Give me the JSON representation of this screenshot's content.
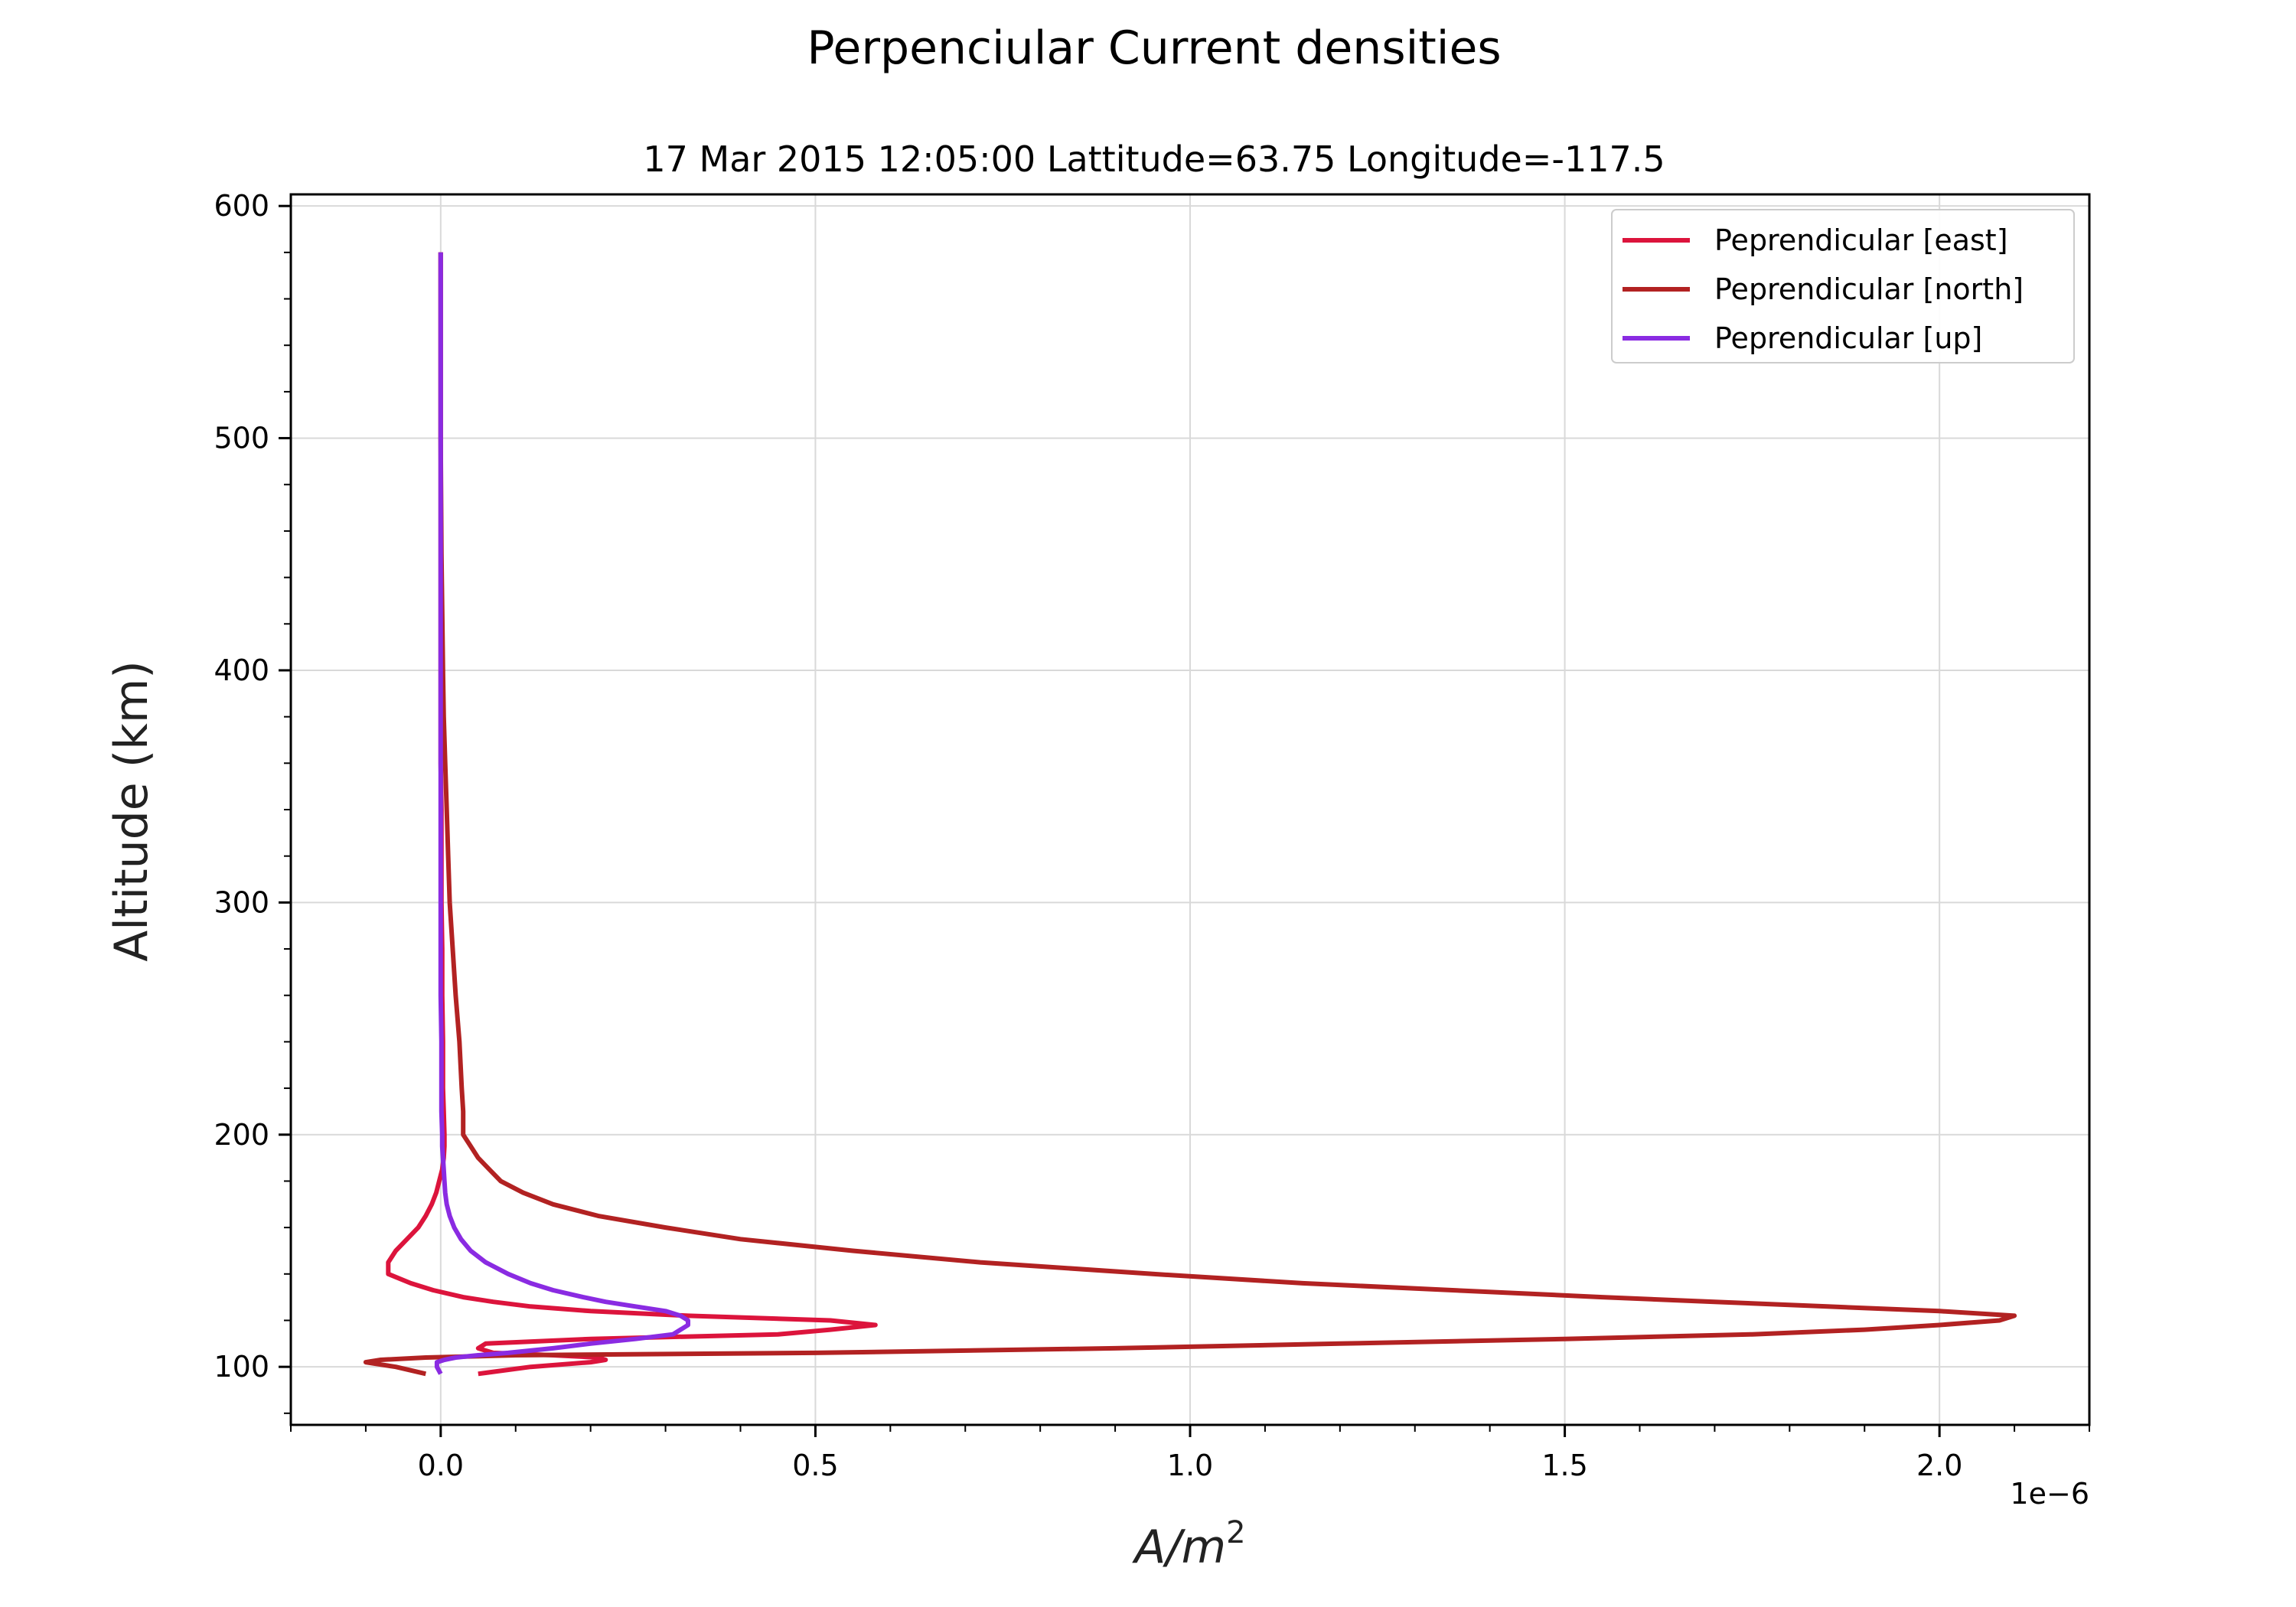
{
  "suptitle": "Perpenciular Current densities",
  "chart_data": {
    "type": "line",
    "title": "17 Mar 2015 12:05:00 Lattitude=63.75 Longitude=-117.5",
    "xlabel_base": "A/m",
    "xlabel_sup": "2",
    "ylabel": "Altitude (km)",
    "x_offset_label": "1e−6",
    "x_scale": 1e-06,
    "xlim": [
      -0.2,
      2.2
    ],
    "ylim": [
      75,
      605
    ],
    "x_ticks": [
      0.0,
      0.5,
      1.0,
      1.5,
      2.0
    ],
    "x_tick_labels": [
      "0.0",
      "0.5",
      "1.0",
      "1.5",
      "2.0"
    ],
    "y_ticks": [
      100,
      200,
      300,
      400,
      500,
      600
    ],
    "y_tick_labels": [
      "100",
      "200",
      "300",
      "400",
      "500",
      "600"
    ],
    "grid": true,
    "legend_position": "top-right",
    "series": [
      {
        "name": "Peprendicular [east]",
        "color": "#dc143c",
        "altitude": [
          97,
          100,
          102,
          103,
          104,
          105,
          106,
          108,
          110,
          112,
          114,
          116,
          118,
          120,
          122,
          124,
          126,
          128,
          130,
          133,
          136,
          140,
          145,
          150,
          155,
          160,
          165,
          170,
          175,
          180,
          185,
          190,
          195,
          200,
          210,
          220,
          240,
          260,
          280,
          300,
          320,
          340,
          360,
          380,
          400,
          450,
          500,
          550,
          580
        ],
        "x": [
          0.05,
          0.12,
          0.2,
          0.22,
          0.21,
          0.15,
          0.07,
          0.05,
          0.06,
          0.2,
          0.45,
          0.52,
          0.58,
          0.52,
          0.33,
          0.2,
          0.12,
          0.07,
          0.03,
          -0.01,
          -0.04,
          -0.07,
          -0.07,
          -0.06,
          -0.045,
          -0.03,
          -0.02,
          -0.012,
          -0.006,
          -0.002,
          0.002,
          0.004,
          0.005,
          0.005,
          0.004,
          0.003,
          0.003,
          0.002,
          0.002,
          0.001,
          0.001,
          0.001,
          0.0,
          0.0,
          0.0,
          0.0,
          0.0,
          0.0,
          0.0
        ]
      },
      {
        "name": "Peprendicular [north]",
        "color": "#b22222",
        "altitude": [
          97,
          100,
          102,
          103,
          104,
          105,
          106,
          108,
          110,
          112,
          114,
          116,
          118,
          120,
          122,
          124,
          126,
          128,
          130,
          133,
          136,
          140,
          145,
          150,
          155,
          160,
          165,
          170,
          175,
          180,
          185,
          190,
          195,
          200,
          210,
          220,
          240,
          260,
          280,
          300,
          320,
          340,
          360,
          380,
          400,
          450,
          500,
          550,
          580
        ],
        "x": [
          -0.02,
          -0.06,
          -0.1,
          -0.08,
          -0.02,
          0.1,
          0.5,
          0.9,
          1.2,
          1.5,
          1.75,
          1.9,
          2.0,
          2.08,
          2.1,
          2.0,
          1.85,
          1.7,
          1.55,
          1.35,
          1.15,
          0.95,
          0.72,
          0.55,
          0.4,
          0.3,
          0.21,
          0.15,
          0.11,
          0.08,
          0.065,
          0.05,
          0.04,
          0.03,
          0.03,
          0.028,
          0.025,
          0.02,
          0.016,
          0.012,
          0.01,
          0.008,
          0.006,
          0.004,
          0.003,
          0.001,
          0.0,
          0.0,
          0.0
        ]
      },
      {
        "name": "Peprendicular [up]",
        "color": "#8a2be2",
        "altitude": [
          97,
          100,
          102,
          103,
          104,
          105,
          106,
          108,
          110,
          112,
          114,
          116,
          118,
          120,
          122,
          124,
          126,
          128,
          130,
          133,
          136,
          140,
          145,
          150,
          155,
          160,
          165,
          170,
          175,
          180,
          185,
          190,
          195,
          200,
          210,
          220,
          240,
          260,
          280,
          300,
          320,
          340,
          360,
          380,
          400,
          450,
          500,
          550,
          580
        ],
        "x": [
          0.0,
          -0.005,
          -0.005,
          0.005,
          0.02,
          0.05,
          0.09,
          0.15,
          0.2,
          0.26,
          0.31,
          0.32,
          0.33,
          0.33,
          0.32,
          0.3,
          0.26,
          0.22,
          0.19,
          0.15,
          0.12,
          0.09,
          0.06,
          0.04,
          0.027,
          0.018,
          0.012,
          0.008,
          0.006,
          0.005,
          0.004,
          0.003,
          0.002,
          0.002,
          0.001,
          0.001,
          0.001,
          0.0,
          0.0,
          0.0,
          0.0,
          0.0,
          0.0,
          0.0,
          0.0,
          0.0,
          0.0,
          0.0,
          0.0
        ]
      }
    ]
  }
}
